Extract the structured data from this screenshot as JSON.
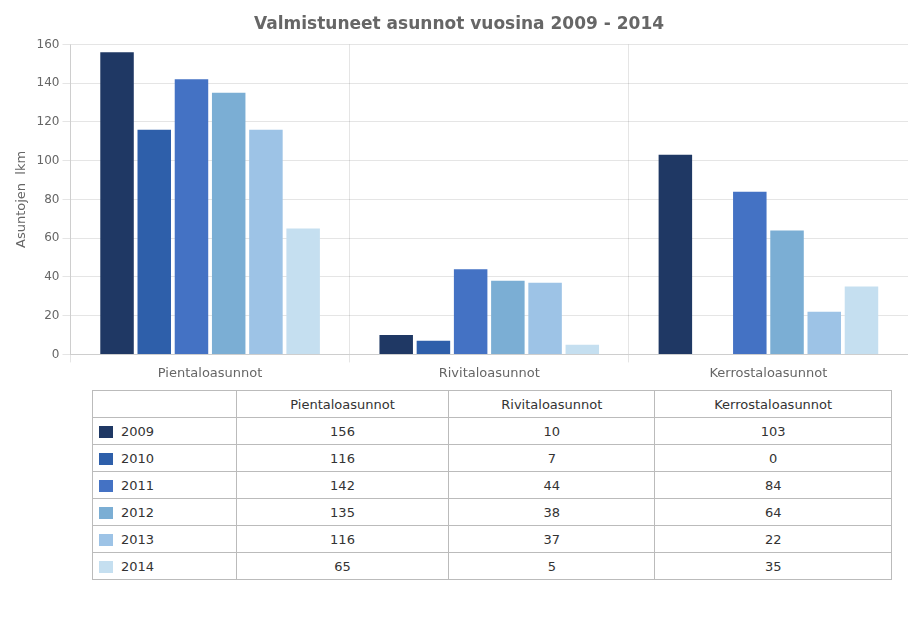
{
  "chart_data": {
    "type": "bar",
    "title": "Valmistuneet asunnot vuosina 2009 - 2014",
    "y_label": "Asuntojen  lkm",
    "categories": [
      "Pientaloasunnot",
      "Rivitaloasunnot",
      "Kerrostaloasunnot"
    ],
    "series": [
      {
        "name": "2009",
        "color": "#1F3864",
        "values": [
          156,
          10,
          103
        ]
      },
      {
        "name": "2010",
        "color": "#2E5FAA",
        "values": [
          116,
          7,
          0
        ]
      },
      {
        "name": "2011",
        "color": "#4472C4",
        "values": [
          142,
          44,
          84
        ]
      },
      {
        "name": "2012",
        "color": "#7BAED4",
        "values": [
          135,
          38,
          64
        ]
      },
      {
        "name": "2013",
        "color": "#9DC3E6",
        "values": [
          116,
          37,
          22
        ]
      },
      {
        "name": "2014",
        "color": "#C5DFF0",
        "values": [
          65,
          5,
          35
        ]
      }
    ],
    "ylim": [
      0,
      160
    ],
    "yticks": [
      0,
      20,
      40,
      60,
      80,
      100,
      120,
      140,
      160
    ],
    "grid": true
  }
}
